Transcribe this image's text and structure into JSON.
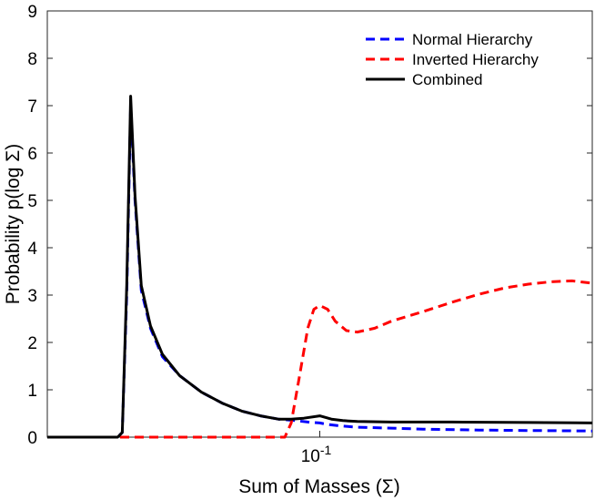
{
  "chart_data": {
    "type": "line",
    "title": "",
    "xlabel": "Sum of Masses (Σ)",
    "ylabel": "Probability p(log Σ)",
    "xscale": "log",
    "xlim": [
      0.05,
      0.2
    ],
    "ylim": [
      0,
      9
    ],
    "yticks": [
      0,
      1,
      2,
      3,
      4,
      5,
      6,
      7,
      8,
      9
    ],
    "xtick_base": "10",
    "xtick_exponent": "-1",
    "xtick_value": 0.1,
    "grid": false,
    "legend_position": "top-right",
    "series": [
      {
        "name": "Normal Hierarchy",
        "color": "#0000ff",
        "style": "dashed",
        "x": [
          0.05,
          0.058,
          0.0598,
          0.0605,
          0.0612,
          0.0618,
          0.0625,
          0.0635,
          0.065,
          0.067,
          0.07,
          0.074,
          0.078,
          0.082,
          0.086,
          0.09,
          0.094,
          0.097,
          0.1,
          0.102,
          0.105,
          0.11,
          0.12,
          0.13,
          0.15,
          0.17,
          0.2
        ],
        "y": [
          0,
          0,
          0,
          0.1,
          3.0,
          7.0,
          5.0,
          3.1,
          2.3,
          1.7,
          1.3,
          0.95,
          0.72,
          0.55,
          0.45,
          0.38,
          0.35,
          0.32,
          0.3,
          0.27,
          0.24,
          0.21,
          0.19,
          0.17,
          0.15,
          0.14,
          0.13
        ]
      },
      {
        "name": "Inverted Hierarchy",
        "color": "#ff0000",
        "style": "dashed",
        "x": [
          0.05,
          0.08,
          0.0915,
          0.093,
          0.095,
          0.097,
          0.0985,
          0.1,
          0.102,
          0.104,
          0.107,
          0.11,
          0.115,
          0.12,
          0.13,
          0.14,
          0.15,
          0.16,
          0.17,
          0.18,
          0.19,
          0.2
        ],
        "y": [
          0,
          0,
          0,
          0.3,
          1.3,
          2.3,
          2.7,
          2.78,
          2.7,
          2.45,
          2.25,
          2.22,
          2.3,
          2.45,
          2.65,
          2.85,
          3.02,
          3.15,
          3.23,
          3.28,
          3.3,
          3.25
        ]
      },
      {
        "name": "Combined",
        "color": "#000000",
        "style": "solid",
        "x": [
          0.05,
          0.058,
          0.0598,
          0.0605,
          0.0612,
          0.0618,
          0.0625,
          0.0635,
          0.065,
          0.067,
          0.07,
          0.074,
          0.078,
          0.082,
          0.086,
          0.09,
          0.093,
          0.096,
          0.1,
          0.103,
          0.106,
          0.11,
          0.12,
          0.14,
          0.17,
          0.2
        ],
        "y": [
          0,
          0,
          0,
          0.1,
          3.2,
          7.2,
          5.1,
          3.2,
          2.35,
          1.75,
          1.3,
          0.95,
          0.72,
          0.55,
          0.45,
          0.38,
          0.38,
          0.4,
          0.45,
          0.38,
          0.35,
          0.33,
          0.32,
          0.32,
          0.31,
          0.3
        ]
      }
    ]
  }
}
